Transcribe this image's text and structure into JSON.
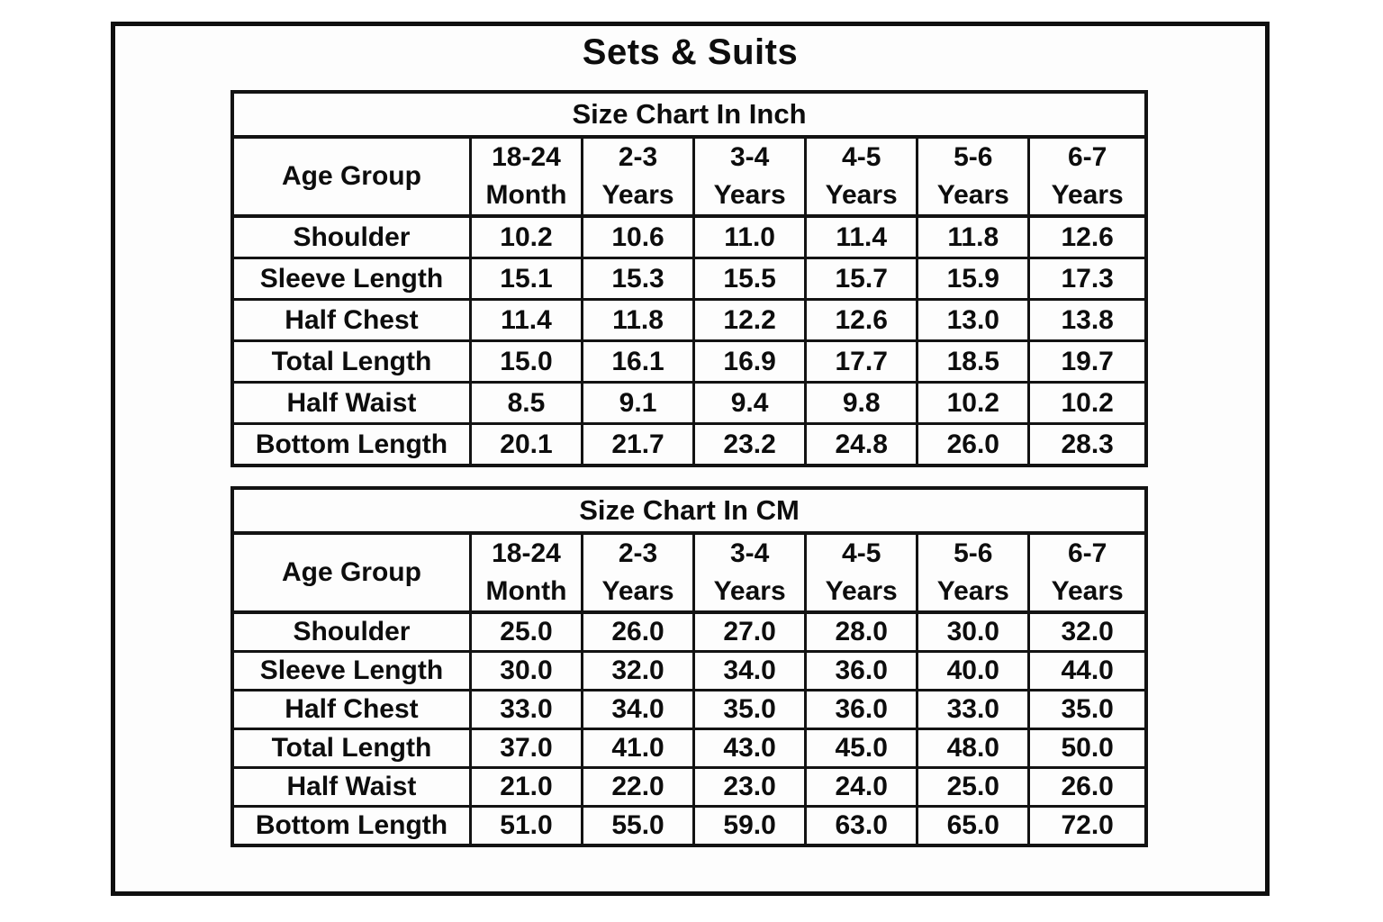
{
  "page": {
    "title": "Sets & Suits"
  },
  "colors": {
    "text": "#0d0d0d",
    "border": "#131313",
    "background": "#fdfdfd"
  },
  "tables": [
    {
      "title": "Size Chart In Inch",
      "corner_label": "Age Group",
      "col_headers": [
        {
          "line1": "18-24",
          "line2": "Month"
        },
        {
          "line1": "2-3",
          "line2": "Years"
        },
        {
          "line1": "3-4",
          "line2": "Years"
        },
        {
          "line1": "4-5",
          "line2": "Years"
        },
        {
          "line1": "5-6",
          "line2": "Years"
        },
        {
          "line1": "6-7",
          "line2": "Years"
        }
      ],
      "rows": [
        {
          "label": "Shoulder",
          "values": [
            "10.2",
            "10.6",
            "11.0",
            "11.4",
            "11.8",
            "12.6"
          ]
        },
        {
          "label": "Sleeve Length",
          "values": [
            "15.1",
            "15.3",
            "15.5",
            "15.7",
            "15.9",
            "17.3"
          ]
        },
        {
          "label": "Half Chest",
          "values": [
            "11.4",
            "11.8",
            "12.2",
            "12.6",
            "13.0",
            "13.8"
          ]
        },
        {
          "label": "Total Length",
          "values": [
            "15.0",
            "16.1",
            "16.9",
            "17.7",
            "18.5",
            "19.7"
          ]
        },
        {
          "label": "Half Waist",
          "values": [
            "8.5",
            "9.1",
            "9.4",
            "9.8",
            "10.2",
            "10.2"
          ]
        },
        {
          "label": "Bottom Length",
          "values": [
            "20.1",
            "21.7",
            "23.2",
            "24.8",
            "26.0",
            "28.3"
          ]
        }
      ]
    },
    {
      "title": "Size Chart In CM",
      "corner_label": "Age Group",
      "col_headers": [
        {
          "line1": "18-24",
          "line2": "Month"
        },
        {
          "line1": "2-3",
          "line2": "Years"
        },
        {
          "line1": "3-4",
          "line2": "Years"
        },
        {
          "line1": "4-5",
          "line2": "Years"
        },
        {
          "line1": "5-6",
          "line2": "Years"
        },
        {
          "line1": "6-7",
          "line2": "Years"
        }
      ],
      "rows": [
        {
          "label": "Shoulder",
          "values": [
            "25.0",
            "26.0",
            "27.0",
            "28.0",
            "30.0",
            "32.0"
          ]
        },
        {
          "label": "Sleeve Length",
          "values": [
            "30.0",
            "32.0",
            "34.0",
            "36.0",
            "40.0",
            "44.0"
          ]
        },
        {
          "label": "Half Chest",
          "values": [
            "33.0",
            "34.0",
            "35.0",
            "36.0",
            "33.0",
            "35.0"
          ]
        },
        {
          "label": "Total Length",
          "values": [
            "37.0",
            "41.0",
            "43.0",
            "45.0",
            "48.0",
            "50.0"
          ]
        },
        {
          "label": "Half Waist",
          "values": [
            "21.0",
            "22.0",
            "23.0",
            "24.0",
            "25.0",
            "26.0"
          ]
        },
        {
          "label": "Bottom Length",
          "values": [
            "51.0",
            "55.0",
            "59.0",
            "63.0",
            "65.0",
            "72.0"
          ]
        }
      ]
    }
  ],
  "chart_data": [
    {
      "type": "table",
      "title": "Size Chart In Inch",
      "columns": [
        "Age Group",
        "18-24 Month",
        "2-3 Years",
        "3-4 Years",
        "4-5 Years",
        "5-6 Years",
        "6-7 Years"
      ],
      "rows": [
        [
          "Shoulder",
          10.2,
          10.6,
          11.0,
          11.4,
          11.8,
          12.6
        ],
        [
          "Sleeve Length",
          15.1,
          15.3,
          15.5,
          15.7,
          15.9,
          17.3
        ],
        [
          "Half Chest",
          11.4,
          11.8,
          12.2,
          12.6,
          13.0,
          13.8
        ],
        [
          "Total Length",
          15.0,
          16.1,
          16.9,
          17.7,
          18.5,
          19.7
        ],
        [
          "Half Waist",
          8.5,
          9.1,
          9.4,
          9.8,
          10.2,
          10.2
        ],
        [
          "Bottom Length",
          20.1,
          21.7,
          23.2,
          24.8,
          26.0,
          28.3
        ]
      ]
    },
    {
      "type": "table",
      "title": "Size Chart In CM",
      "columns": [
        "Age Group",
        "18-24 Month",
        "2-3 Years",
        "3-4 Years",
        "4-5 Years",
        "5-6 Years",
        "6-7 Years"
      ],
      "rows": [
        [
          "Shoulder",
          25.0,
          26.0,
          27.0,
          28.0,
          30.0,
          32.0
        ],
        [
          "Sleeve Length",
          30.0,
          32.0,
          34.0,
          36.0,
          40.0,
          44.0
        ],
        [
          "Half Chest",
          33.0,
          34.0,
          35.0,
          36.0,
          33.0,
          35.0
        ],
        [
          "Total Length",
          37.0,
          41.0,
          43.0,
          45.0,
          48.0,
          50.0
        ],
        [
          "Half Waist",
          21.0,
          22.0,
          23.0,
          24.0,
          25.0,
          26.0
        ],
        [
          "Bottom Length",
          51.0,
          55.0,
          59.0,
          63.0,
          65.0,
          72.0
        ]
      ]
    }
  ]
}
